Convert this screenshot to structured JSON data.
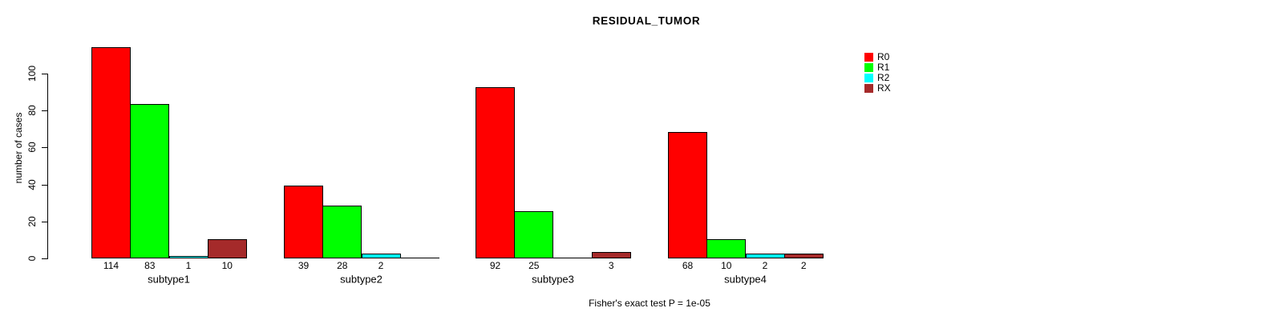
{
  "chart_data": {
    "type": "bar",
    "title": "RESIDUAL_TUMOR",
    "ylabel": "number of cases",
    "xlabel": "",
    "footer": "Fisher's exact test P = 1e-05",
    "categories": [
      "subtype1",
      "subtype2",
      "subtype3",
      "subtype4"
    ],
    "series": [
      {
        "name": "R0",
        "color": "#FF0000",
        "values": [
          114,
          39,
          92,
          68
        ]
      },
      {
        "name": "R1",
        "color": "#00FF00",
        "values": [
          83,
          28,
          25,
          10
        ]
      },
      {
        "name": "R2",
        "color": "#00FFFF",
        "values": [
          1,
          2,
          0,
          2
        ]
      },
      {
        "name": "RX",
        "color": "#A52A2A",
        "values": [
          10,
          0,
          3,
          2
        ]
      }
    ],
    "yticks": [
      0,
      20,
      40,
      60,
      80,
      100
    ],
    "ylim": [
      0,
      100
    ],
    "grid": false,
    "legend_position": "right",
    "bar_value_labels": true,
    "hide_zero_value_labels": true,
    "background_color": "#FFFFFF",
    "text_color": "#000000",
    "bar_border_color": "#000000"
  }
}
